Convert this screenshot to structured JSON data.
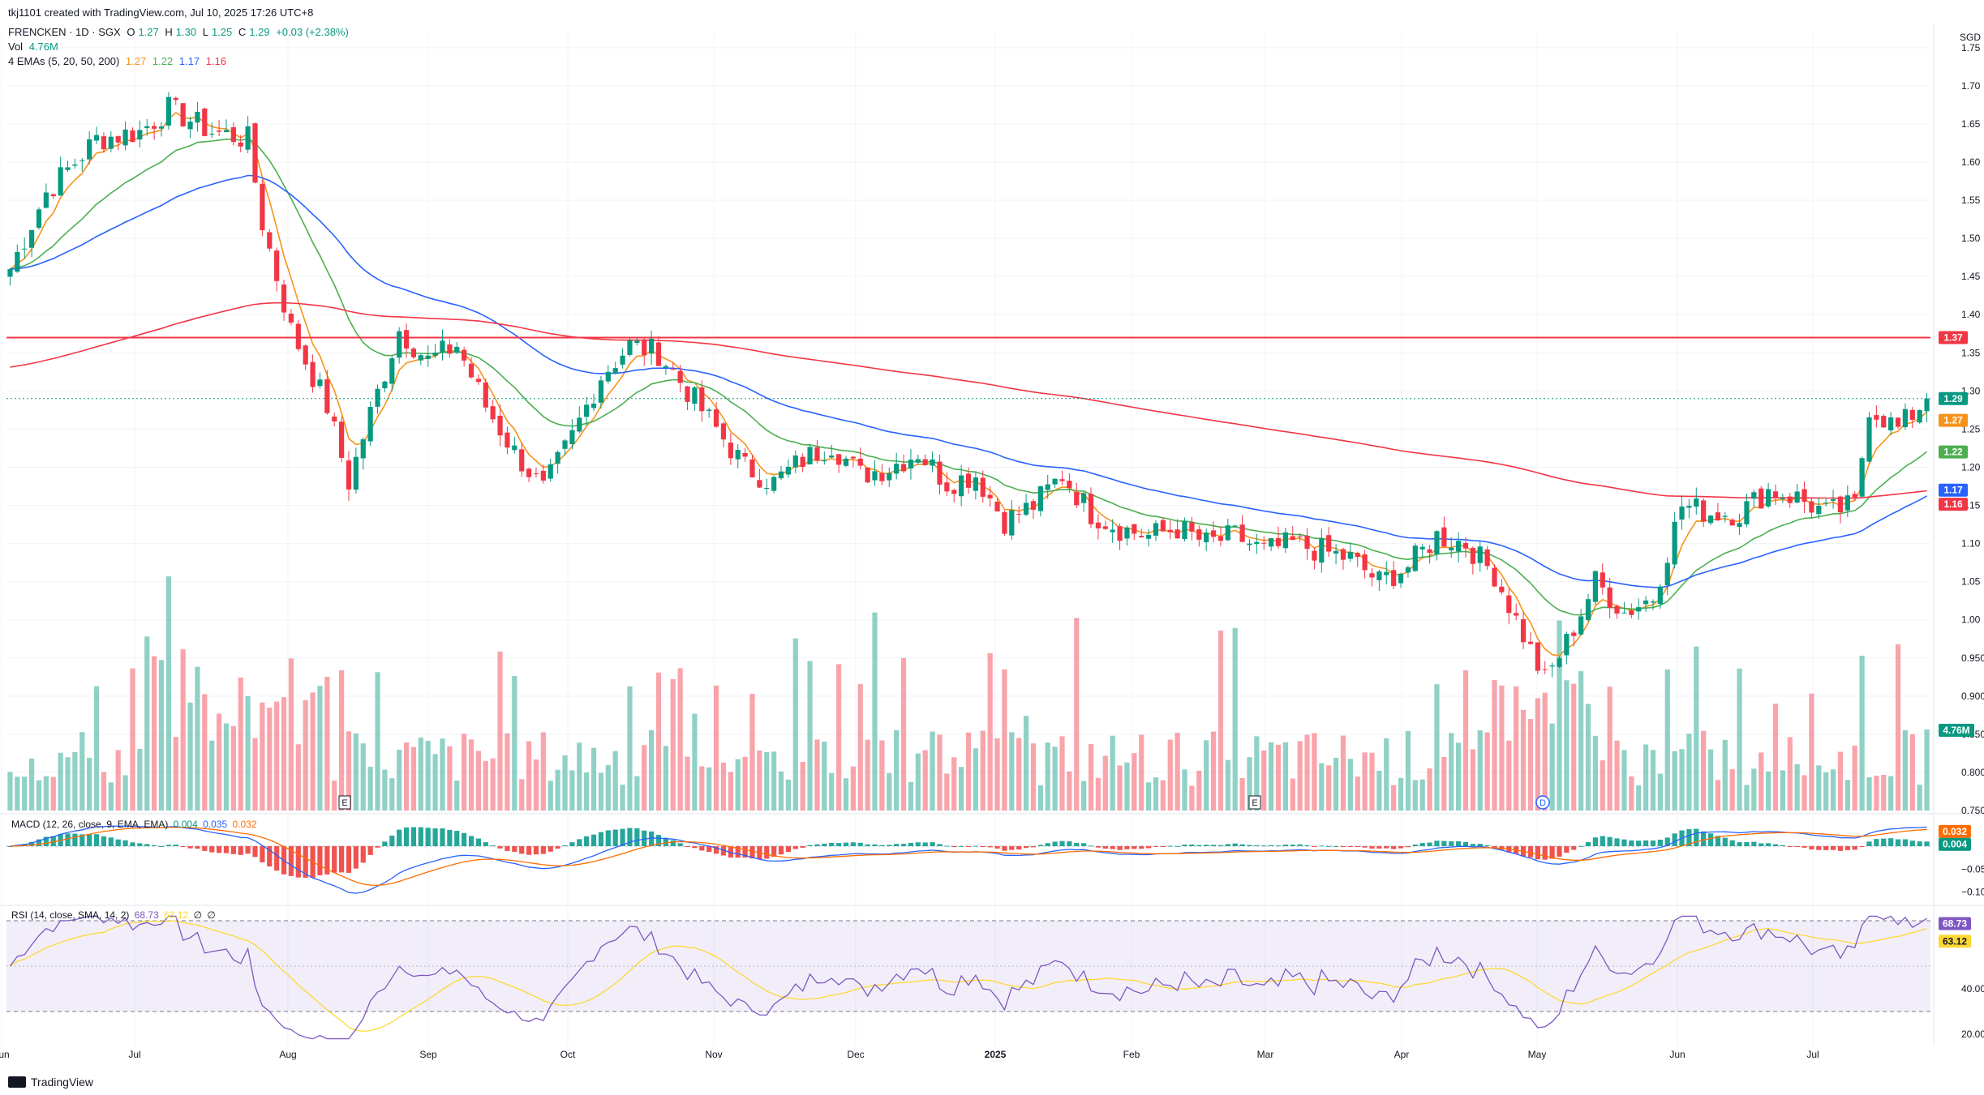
{
  "header": {
    "creator": "tkj1101 created with TradingView.com, Jul 10, 2025 17:26 UTC+8",
    "symbol": "FRENCKEN · 1D · SGX",
    "o_label": "O",
    "o": "1.27",
    "h_label": "H",
    "h": "1.30",
    "l_label": "L",
    "l": "1.25",
    "c_label": "C",
    "c": "1.29",
    "change": "+0.03 (+2.38%)",
    "vol_label": "Vol",
    "vol": "4.76M",
    "ema_label": "4 EMAs (5, 20, 50, 200)",
    "ema_values": [
      "1.27",
      "1.22",
      "1.17",
      "1.16"
    ]
  },
  "macd_label": {
    "text": "MACD (12, 26, close, 9, EMA, EMA)",
    "v1": "0.004",
    "v2": "0.035",
    "v3": "0.032"
  },
  "rsi_label": {
    "text": "RSI (14, close, SMA, 14, 2)",
    "v1": "68.73",
    "v2": "63.12",
    "v3": "∅",
    "v4": "∅"
  },
  "footer": {
    "brand": "TradingView"
  },
  "colors": {
    "up": "#089981",
    "down": "#f23645",
    "ema5": "#f7931a",
    "ema20": "#4caf50",
    "ema50": "#2962ff",
    "ema200": "#f23645",
    "macd": "#2962ff",
    "signal": "#ff6d00",
    "rsi": "#7e57c2",
    "rsi_ma": "#fdd835"
  },
  "chart_data": [
    {
      "type": "candlestick",
      "currency": "SGD",
      "x_labels": [
        "Jun",
        "Jul",
        "Aug",
        "Sep",
        "Oct",
        "Nov",
        "Dec",
        "2025",
        "Feb",
        "Mar",
        "Apr",
        "May",
        "Jun",
        "Jul"
      ],
      "y_ticks": [
        "1.75",
        "1.70",
        "1.65",
        "1.60",
        "1.55",
        "1.50",
        "1.45",
        "1.40",
        "1.35",
        "1.30",
        "1.25",
        "1.20",
        "1.15",
        "1.10",
        "1.05",
        "1.00",
        "0.950",
        "0.900",
        "0.850",
        "0.800",
        "0.750"
      ],
      "ylim": [
        0.75,
        1.77
      ],
      "anchors": [
        [
          0,
          1.46
        ],
        [
          5,
          1.56
        ],
        [
          12,
          1.63
        ],
        [
          18,
          1.64
        ],
        [
          22,
          1.67
        ],
        [
          28,
          1.64
        ],
        [
          33,
          1.63
        ],
        [
          35,
          1.52
        ],
        [
          39,
          1.38
        ],
        [
          44,
          1.28
        ],
        [
          47,
          1.18
        ],
        [
          50,
          1.27
        ],
        [
          54,
          1.38
        ],
        [
          58,
          1.34
        ],
        [
          62,
          1.36
        ],
        [
          66,
          1.28
        ],
        [
          70,
          1.22
        ],
        [
          74,
          1.17
        ],
        [
          78,
          1.24
        ],
        [
          82,
          1.32
        ],
        [
          86,
          1.36
        ],
        [
          90,
          1.35
        ],
        [
          94,
          1.3
        ],
        [
          98,
          1.25
        ],
        [
          102,
          1.2
        ],
        [
          106,
          1.18
        ],
        [
          110,
          1.21
        ],
        [
          114,
          1.23
        ],
        [
          118,
          1.19
        ],
        [
          122,
          1.2
        ],
        [
          126,
          1.22
        ],
        [
          130,
          1.18
        ],
        [
          134,
          1.19
        ],
        [
          138,
          1.13
        ],
        [
          142,
          1.15
        ],
        [
          146,
          1.19
        ],
        [
          150,
          1.14
        ],
        [
          154,
          1.12
        ],
        [
          158,
          1.11
        ],
        [
          162,
          1.12
        ],
        [
          166,
          1.1
        ],
        [
          170,
          1.11
        ],
        [
          174,
          1.09
        ],
        [
          178,
          1.1
        ],
        [
          182,
          1.09
        ],
        [
          186,
          1.08
        ],
        [
          190,
          1.05
        ],
        [
          194,
          1.07
        ],
        [
          198,
          1.11
        ],
        [
          202,
          1.1
        ],
        [
          206,
          1.06
        ],
        [
          210,
          0.98
        ],
        [
          213,
          0.92
        ],
        [
          216,
          0.97
        ],
        [
          220,
          1.05
        ],
        [
          224,
          1.01
        ],
        [
          228,
          1.03
        ],
        [
          232,
          1.15
        ],
        [
          236,
          1.14
        ],
        [
          240,
          1.14
        ],
        [
          244,
          1.17
        ],
        [
          248,
          1.16
        ],
        [
          252,
          1.14
        ],
        [
          256,
          1.15
        ],
        [
          258,
          1.28
        ],
        [
          262,
          1.25
        ],
        [
          266,
          1.29
        ]
      ],
      "last_price": 1.29,
      "resistance_line": 1.37,
      "price_labels": [
        {
          "text": "1.37"
        },
        {
          "text": "1.29"
        },
        {
          "text": "1.27"
        },
        {
          "text": "1.22"
        },
        {
          "text": "1.17"
        },
        {
          "text": "1.16"
        }
      ],
      "ema_series": [
        {
          "period": 5
        },
        {
          "period": 20
        },
        {
          "period": 50
        },
        {
          "period": 200
        }
      ],
      "event_markers": [
        "E",
        "E",
        "D"
      ]
    },
    {
      "type": "bar",
      "name": "Vol",
      "last_value_label": "4.76M"
    },
    {
      "type": "histogram",
      "name": "MACD",
      "y_ticks": [
        "0.032",
        "0.004",
        "−0.050",
        "−0.100"
      ],
      "ylim": [
        -0.12,
        0.06
      ]
    },
    {
      "type": "line",
      "name": "RSI",
      "y_ticks": [
        "68.73",
        "63.12",
        "40.00",
        "20.00"
      ],
      "ylim": [
        15,
        75
      ],
      "bands": [
        70,
        30
      ]
    }
  ]
}
